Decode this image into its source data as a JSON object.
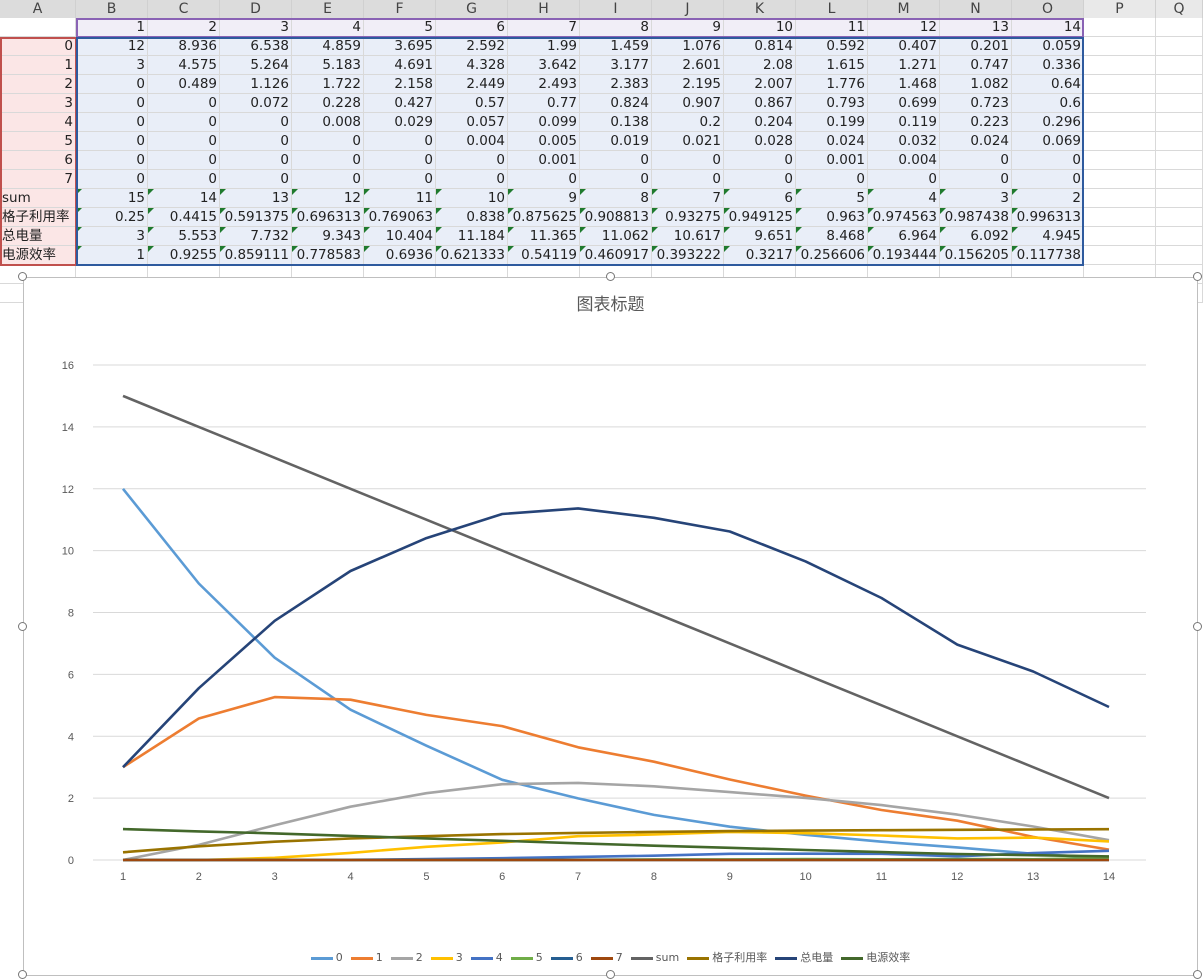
{
  "columns": [
    "A",
    "B",
    "C",
    "D",
    "E",
    "F",
    "G",
    "H",
    "I",
    "J",
    "K",
    "L",
    "M",
    "N",
    "O",
    "P",
    "Q"
  ],
  "header_row": [
    "1",
    "2",
    "3",
    "4",
    "5",
    "6",
    "7",
    "8",
    "9",
    "10",
    "11",
    "12",
    "13",
    "14"
  ],
  "rows": [
    {
      "label": "0",
      "values": [
        "12",
        "8.936",
        "6.538",
        "4.859",
        "3.695",
        "2.592",
        "1.99",
        "1.459",
        "1.076",
        "0.814",
        "0.592",
        "0.407",
        "0.201",
        "0.059"
      ]
    },
    {
      "label": "1",
      "values": [
        "3",
        "4.575",
        "5.264",
        "5.183",
        "4.691",
        "4.328",
        "3.642",
        "3.177",
        "2.601",
        "2.08",
        "1.615",
        "1.271",
        "0.747",
        "0.336"
      ]
    },
    {
      "label": "2",
      "values": [
        "0",
        "0.489",
        "1.126",
        "1.722",
        "2.158",
        "2.449",
        "2.493",
        "2.383",
        "2.195",
        "2.007",
        "1.776",
        "1.468",
        "1.082",
        "0.64"
      ]
    },
    {
      "label": "3",
      "values": [
        "0",
        "0",
        "0.072",
        "0.228",
        "0.427",
        "0.57",
        "0.77",
        "0.824",
        "0.907",
        "0.867",
        "0.793",
        "0.699",
        "0.723",
        "0.6"
      ]
    },
    {
      "label": "4",
      "values": [
        "0",
        "0",
        "0",
        "0.008",
        "0.029",
        "0.057",
        "0.099",
        "0.138",
        "0.2",
        "0.204",
        "0.199",
        "0.119",
        "0.223",
        "0.296"
      ]
    },
    {
      "label": "5",
      "values": [
        "0",
        "0",
        "0",
        "0",
        "0",
        "0.004",
        "0.005",
        "0.019",
        "0.021",
        "0.028",
        "0.024",
        "0.032",
        "0.024",
        "0.069"
      ]
    },
    {
      "label": "6",
      "values": [
        "0",
        "0",
        "0",
        "0",
        "0",
        "0",
        "0.001",
        "0",
        "0",
        "0",
        "0.001",
        "0.004",
        "0",
        "0"
      ]
    },
    {
      "label": "7",
      "values": [
        "0",
        "0",
        "0",
        "0",
        "0",
        "0",
        "0",
        "0",
        "0",
        "0",
        "0",
        "0",
        "0",
        "0"
      ]
    },
    {
      "label": "sum",
      "values": [
        "15",
        "14",
        "13",
        "12",
        "11",
        "10",
        "9",
        "8",
        "7",
        "6",
        "5",
        "4",
        "3",
        "2"
      ]
    },
    {
      "label": "格子利用率",
      "values": [
        "0.25",
        "0.4415",
        "0.591375",
        "0.696313",
        "0.769063",
        "0.838",
        "0.875625",
        "0.908813",
        "0.93275",
        "0.949125",
        "0.963",
        "0.974563",
        "0.987438",
        "0.996313"
      ]
    },
    {
      "label": "总电量",
      "values": [
        "3",
        "5.553",
        "7.732",
        "9.343",
        "10.404",
        "11.184",
        "11.365",
        "11.062",
        "10.617",
        "9.651",
        "8.468",
        "6.964",
        "6.092",
        "4.945"
      ]
    },
    {
      "label": "电源效率",
      "values": [
        "1",
        "0.9255",
        "0.859111",
        "0.778583",
        "0.6936",
        "0.621333",
        "0.54119",
        "0.460917",
        "0.393222",
        "0.3217",
        "0.256606",
        "0.193444",
        "0.156205",
        "0.117738"
      ]
    }
  ],
  "chart_data": {
    "type": "line",
    "title": "图表标题",
    "x": [
      1,
      2,
      3,
      4,
      5,
      6,
      7,
      8,
      9,
      10,
      11,
      12,
      13,
      14
    ],
    "ylim": [
      0,
      16
    ],
    "yticks": [
      0,
      2,
      4,
      6,
      8,
      10,
      12,
      14,
      16
    ],
    "grid": true,
    "legend_position": "bottom",
    "series": [
      {
        "name": "0",
        "color": "#5b9bd5",
        "values": [
          12,
          8.936,
          6.538,
          4.859,
          3.695,
          2.592,
          1.99,
          1.459,
          1.076,
          0.814,
          0.592,
          0.407,
          0.201,
          0.059
        ]
      },
      {
        "name": "1",
        "color": "#ed7d31",
        "values": [
          3,
          4.575,
          5.264,
          5.183,
          4.691,
          4.328,
          3.642,
          3.177,
          2.601,
          2.08,
          1.615,
          1.271,
          0.747,
          0.336
        ]
      },
      {
        "name": "2",
        "color": "#a5a5a5",
        "values": [
          0,
          0.489,
          1.126,
          1.722,
          2.158,
          2.449,
          2.493,
          2.383,
          2.195,
          2.007,
          1.776,
          1.468,
          1.082,
          0.64
        ]
      },
      {
        "name": "3",
        "color": "#ffc000",
        "values": [
          0,
          0,
          0.072,
          0.228,
          0.427,
          0.57,
          0.77,
          0.824,
          0.907,
          0.867,
          0.793,
          0.699,
          0.723,
          0.6
        ]
      },
      {
        "name": "4",
        "color": "#4472c4",
        "values": [
          0,
          0,
          0,
          0.008,
          0.029,
          0.057,
          0.099,
          0.138,
          0.2,
          0.204,
          0.199,
          0.119,
          0.223,
          0.296
        ]
      },
      {
        "name": "5",
        "color": "#70ad47",
        "values": [
          0,
          0,
          0,
          0,
          0,
          0.004,
          0.005,
          0.019,
          0.021,
          0.028,
          0.024,
          0.032,
          0.024,
          0.069
        ]
      },
      {
        "name": "6",
        "color": "#255e91",
        "values": [
          0,
          0,
          0,
          0,
          0,
          0,
          0.001,
          0,
          0,
          0,
          0.001,
          0.004,
          0,
          0
        ]
      },
      {
        "name": "7",
        "color": "#9e480e",
        "values": [
          0,
          0,
          0,
          0,
          0,
          0,
          0,
          0,
          0,
          0,
          0,
          0,
          0,
          0
        ]
      },
      {
        "name": "sum",
        "color": "#636363",
        "values": [
          15,
          14,
          13,
          12,
          11,
          10,
          9,
          8,
          7,
          6,
          5,
          4,
          3,
          2
        ]
      },
      {
        "name": "格子利用率",
        "color": "#997300",
        "values": [
          0.25,
          0.4415,
          0.591375,
          0.696313,
          0.769063,
          0.838,
          0.875625,
          0.908813,
          0.93275,
          0.949125,
          0.963,
          0.974563,
          0.987438,
          0.996313
        ]
      },
      {
        "name": "总电量",
        "color": "#264478",
        "values": [
          3,
          5.553,
          7.732,
          9.343,
          10.404,
          11.184,
          11.365,
          11.062,
          10.617,
          9.651,
          8.468,
          6.964,
          6.092,
          4.945
        ]
      },
      {
        "name": "电源效率",
        "color": "#43682b",
        "values": [
          1,
          0.9255,
          0.859111,
          0.778583,
          0.6936,
          0.621333,
          0.54119,
          0.460917,
          0.393222,
          0.3217,
          0.256606,
          0.193444,
          0.156205,
          0.117738
        ]
      }
    ]
  }
}
